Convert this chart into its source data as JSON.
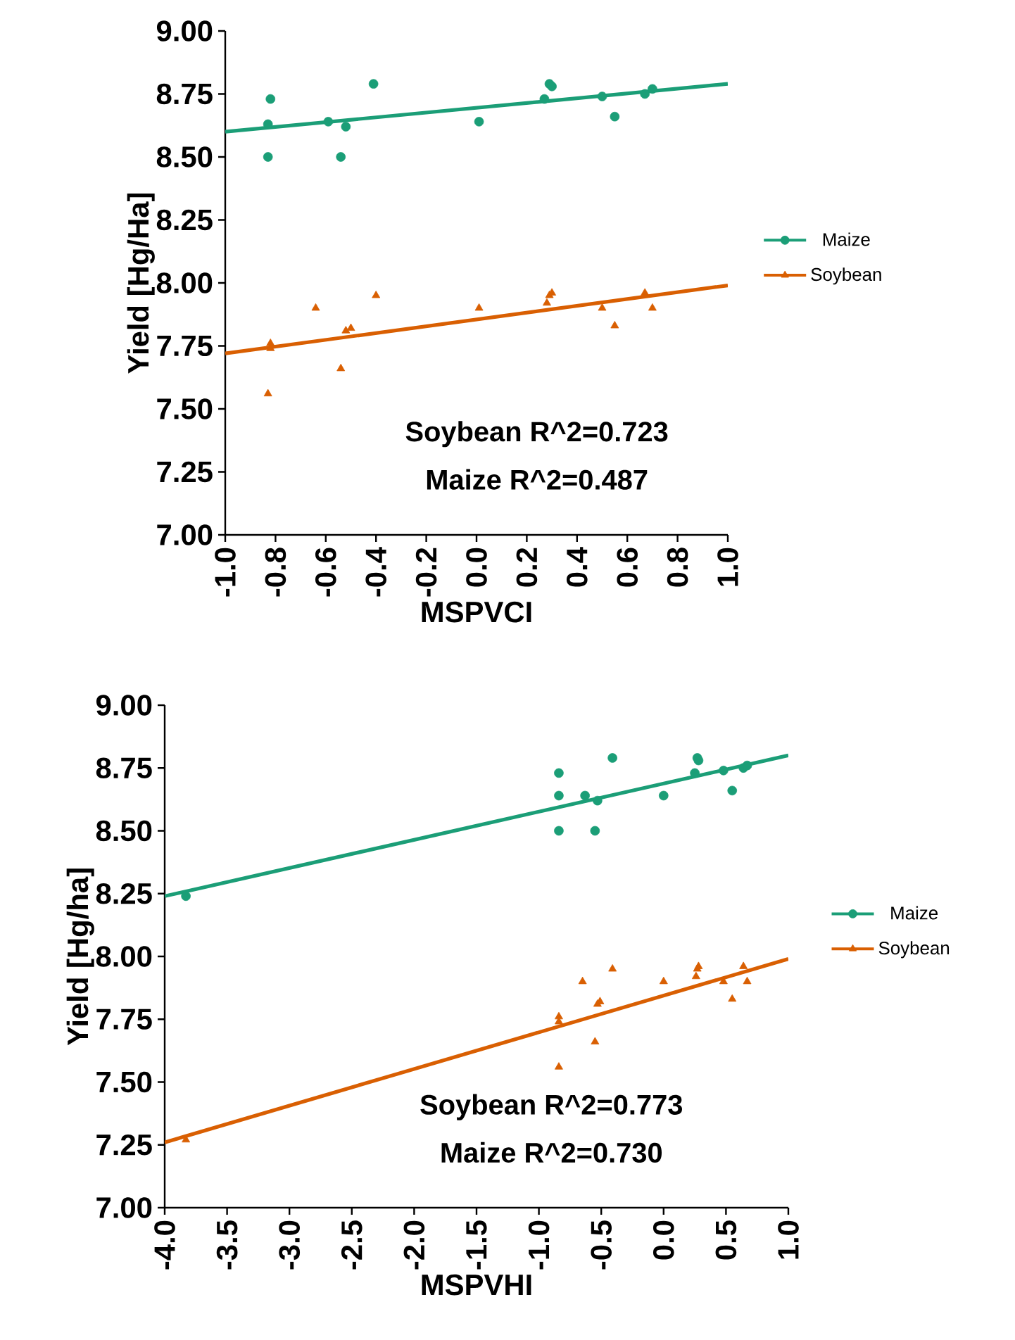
{
  "chart_data": [
    {
      "type": "scatter",
      "xlabel": "MSPVCI",
      "ylabel": "Yield [Hg/Ha]",
      "xlim": [
        -1.0,
        1.0
      ],
      "ylim": [
        7.0,
        9.0
      ],
      "xticks": [
        {
          "value": -1.0,
          "label": "-1.0"
        },
        {
          "value": -0.8,
          "label": "-0.8"
        },
        {
          "value": -0.6,
          "label": "-0.6"
        },
        {
          "value": -0.4,
          "label": "-0.4"
        },
        {
          "value": -0.2,
          "label": "-0.2"
        },
        {
          "value": 0.0,
          "label": "0.0"
        },
        {
          "value": 0.2,
          "label": "0.2"
        },
        {
          "value": 0.4,
          "label": "0.4"
        },
        {
          "value": 0.6,
          "label": "0.6"
        },
        {
          "value": 0.8,
          "label": "0.8"
        },
        {
          "value": 1.0,
          "label": "1.0"
        }
      ],
      "yticks": [
        {
          "value": 7.0,
          "label": "7.00"
        },
        {
          "value": 7.25,
          "label": "7.25"
        },
        {
          "value": 7.5,
          "label": "7.50"
        },
        {
          "value": 7.75,
          "label": "7.75"
        },
        {
          "value": 8.0,
          "label": "8.00"
        },
        {
          "value": 8.25,
          "label": "8.25"
        },
        {
          "value": 8.5,
          "label": "8.50"
        },
        {
          "value": 8.75,
          "label": "8.75"
        },
        {
          "value": 9.0,
          "label": "9.00"
        }
      ],
      "legend": "right",
      "grid": false,
      "annotations": [
        "Soybean R^2=0.723",
        "Maize R^2=0.487"
      ],
      "series": [
        {
          "name": "Maize",
          "marker": "circle",
          "color": "#1b9e77",
          "x": [
            -0.83,
            -0.82,
            -0.83,
            -0.59,
            -0.54,
            -0.52,
            -0.41,
            0.01,
            0.27,
            0.29,
            0.3,
            0.5,
            0.55,
            0.67,
            0.7
          ],
          "values": [
            8.63,
            8.73,
            8.5,
            8.64,
            8.5,
            8.62,
            8.79,
            8.64,
            8.73,
            8.79,
            8.78,
            8.74,
            8.66,
            8.75,
            8.77
          ]
        },
        {
          "name": "Soybean",
          "marker": "triangle",
          "color": "#d95f02",
          "x": [
            -0.83,
            -0.82,
            -0.82,
            -0.64,
            -0.54,
            -0.52,
            -0.5,
            -0.4,
            0.01,
            0.28,
            0.29,
            0.3,
            0.5,
            0.55,
            0.67,
            0.7
          ],
          "values": [
            7.56,
            7.76,
            7.74,
            7.9,
            7.66,
            7.81,
            7.82,
            7.95,
            7.9,
            7.92,
            7.95,
            7.96,
            7.9,
            7.83,
            7.96,
            7.9
          ]
        },
        {
          "type": "line",
          "color": "#1b9e77",
          "x": [
            -1.0,
            1.0
          ],
          "values": [
            8.6,
            8.79
          ]
        },
        {
          "type": "line",
          "color": "#d95f02",
          "x": [
            -1.0,
            1.0
          ],
          "values": [
            7.72,
            7.99
          ]
        }
      ]
    },
    {
      "type": "scatter",
      "xlabel": "MSPVHI",
      "ylabel": "Yield [Hg/ha]",
      "xlim": [
        -4.0,
        1.0
      ],
      "ylim": [
        7.0,
        9.0
      ],
      "xticks": [
        {
          "value": -4.0,
          "label": "-4.0"
        },
        {
          "value": -3.5,
          "label": "-3.5"
        },
        {
          "value": -3.0,
          "label": "-3.0"
        },
        {
          "value": -2.5,
          "label": "-2.5"
        },
        {
          "value": -2.0,
          "label": "-2.0"
        },
        {
          "value": -1.5,
          "label": "-1.5"
        },
        {
          "value": -1.0,
          "label": "-1.0"
        },
        {
          "value": -0.5,
          "label": "-0.5"
        },
        {
          "value": 0.0,
          "label": "0.0"
        },
        {
          "value": 0.5,
          "label": "0.5"
        },
        {
          "value": 1.0,
          "label": "1.0"
        }
      ],
      "yticks": [
        {
          "value": 7.0,
          "label": "7.00"
        },
        {
          "value": 7.25,
          "label": "7.25"
        },
        {
          "value": 7.5,
          "label": "7.50"
        },
        {
          "value": 7.75,
          "label": "7.75"
        },
        {
          "value": 8.0,
          "label": "8.00"
        },
        {
          "value": 8.25,
          "label": "8.25"
        },
        {
          "value": 8.5,
          "label": "8.50"
        },
        {
          "value": 8.75,
          "label": "8.75"
        },
        {
          "value": 9.0,
          "label": "9.00"
        }
      ],
      "legend": "right",
      "grid": false,
      "annotations": [
        "Soybean R^2=0.773",
        "Maize R^2=0.730"
      ],
      "series": [
        {
          "name": "Maize",
          "marker": "circle",
          "color": "#1b9e77",
          "x": [
            -3.83,
            -0.84,
            -0.84,
            -0.84,
            -0.63,
            -0.55,
            -0.53,
            -0.41,
            0.0,
            0.25,
            0.27,
            0.28,
            0.48,
            0.55,
            0.64,
            0.67
          ],
          "values": [
            8.24,
            8.73,
            8.64,
            8.5,
            8.64,
            8.5,
            8.62,
            8.79,
            8.64,
            8.73,
            8.79,
            8.78,
            8.74,
            8.66,
            8.75,
            8.76
          ]
        },
        {
          "name": "Soybean",
          "marker": "triangle",
          "color": "#d95f02",
          "x": [
            -3.83,
            -0.84,
            -0.84,
            -0.84,
            -0.65,
            -0.55,
            -0.53,
            -0.51,
            -0.41,
            0.0,
            0.26,
            0.27,
            0.28,
            0.48,
            0.55,
            0.64,
            0.67
          ],
          "values": [
            7.27,
            7.56,
            7.76,
            7.74,
            7.9,
            7.66,
            7.81,
            7.82,
            7.95,
            7.9,
            7.92,
            7.95,
            7.96,
            7.9,
            7.83,
            7.96,
            7.9
          ]
        },
        {
          "type": "line",
          "color": "#1b9e77",
          "x": [
            -4.0,
            1.0
          ],
          "values": [
            8.24,
            8.8
          ]
        },
        {
          "type": "line",
          "color": "#d95f02",
          "x": [
            -4.0,
            1.0
          ],
          "values": [
            7.26,
            7.99
          ]
        }
      ]
    }
  ]
}
